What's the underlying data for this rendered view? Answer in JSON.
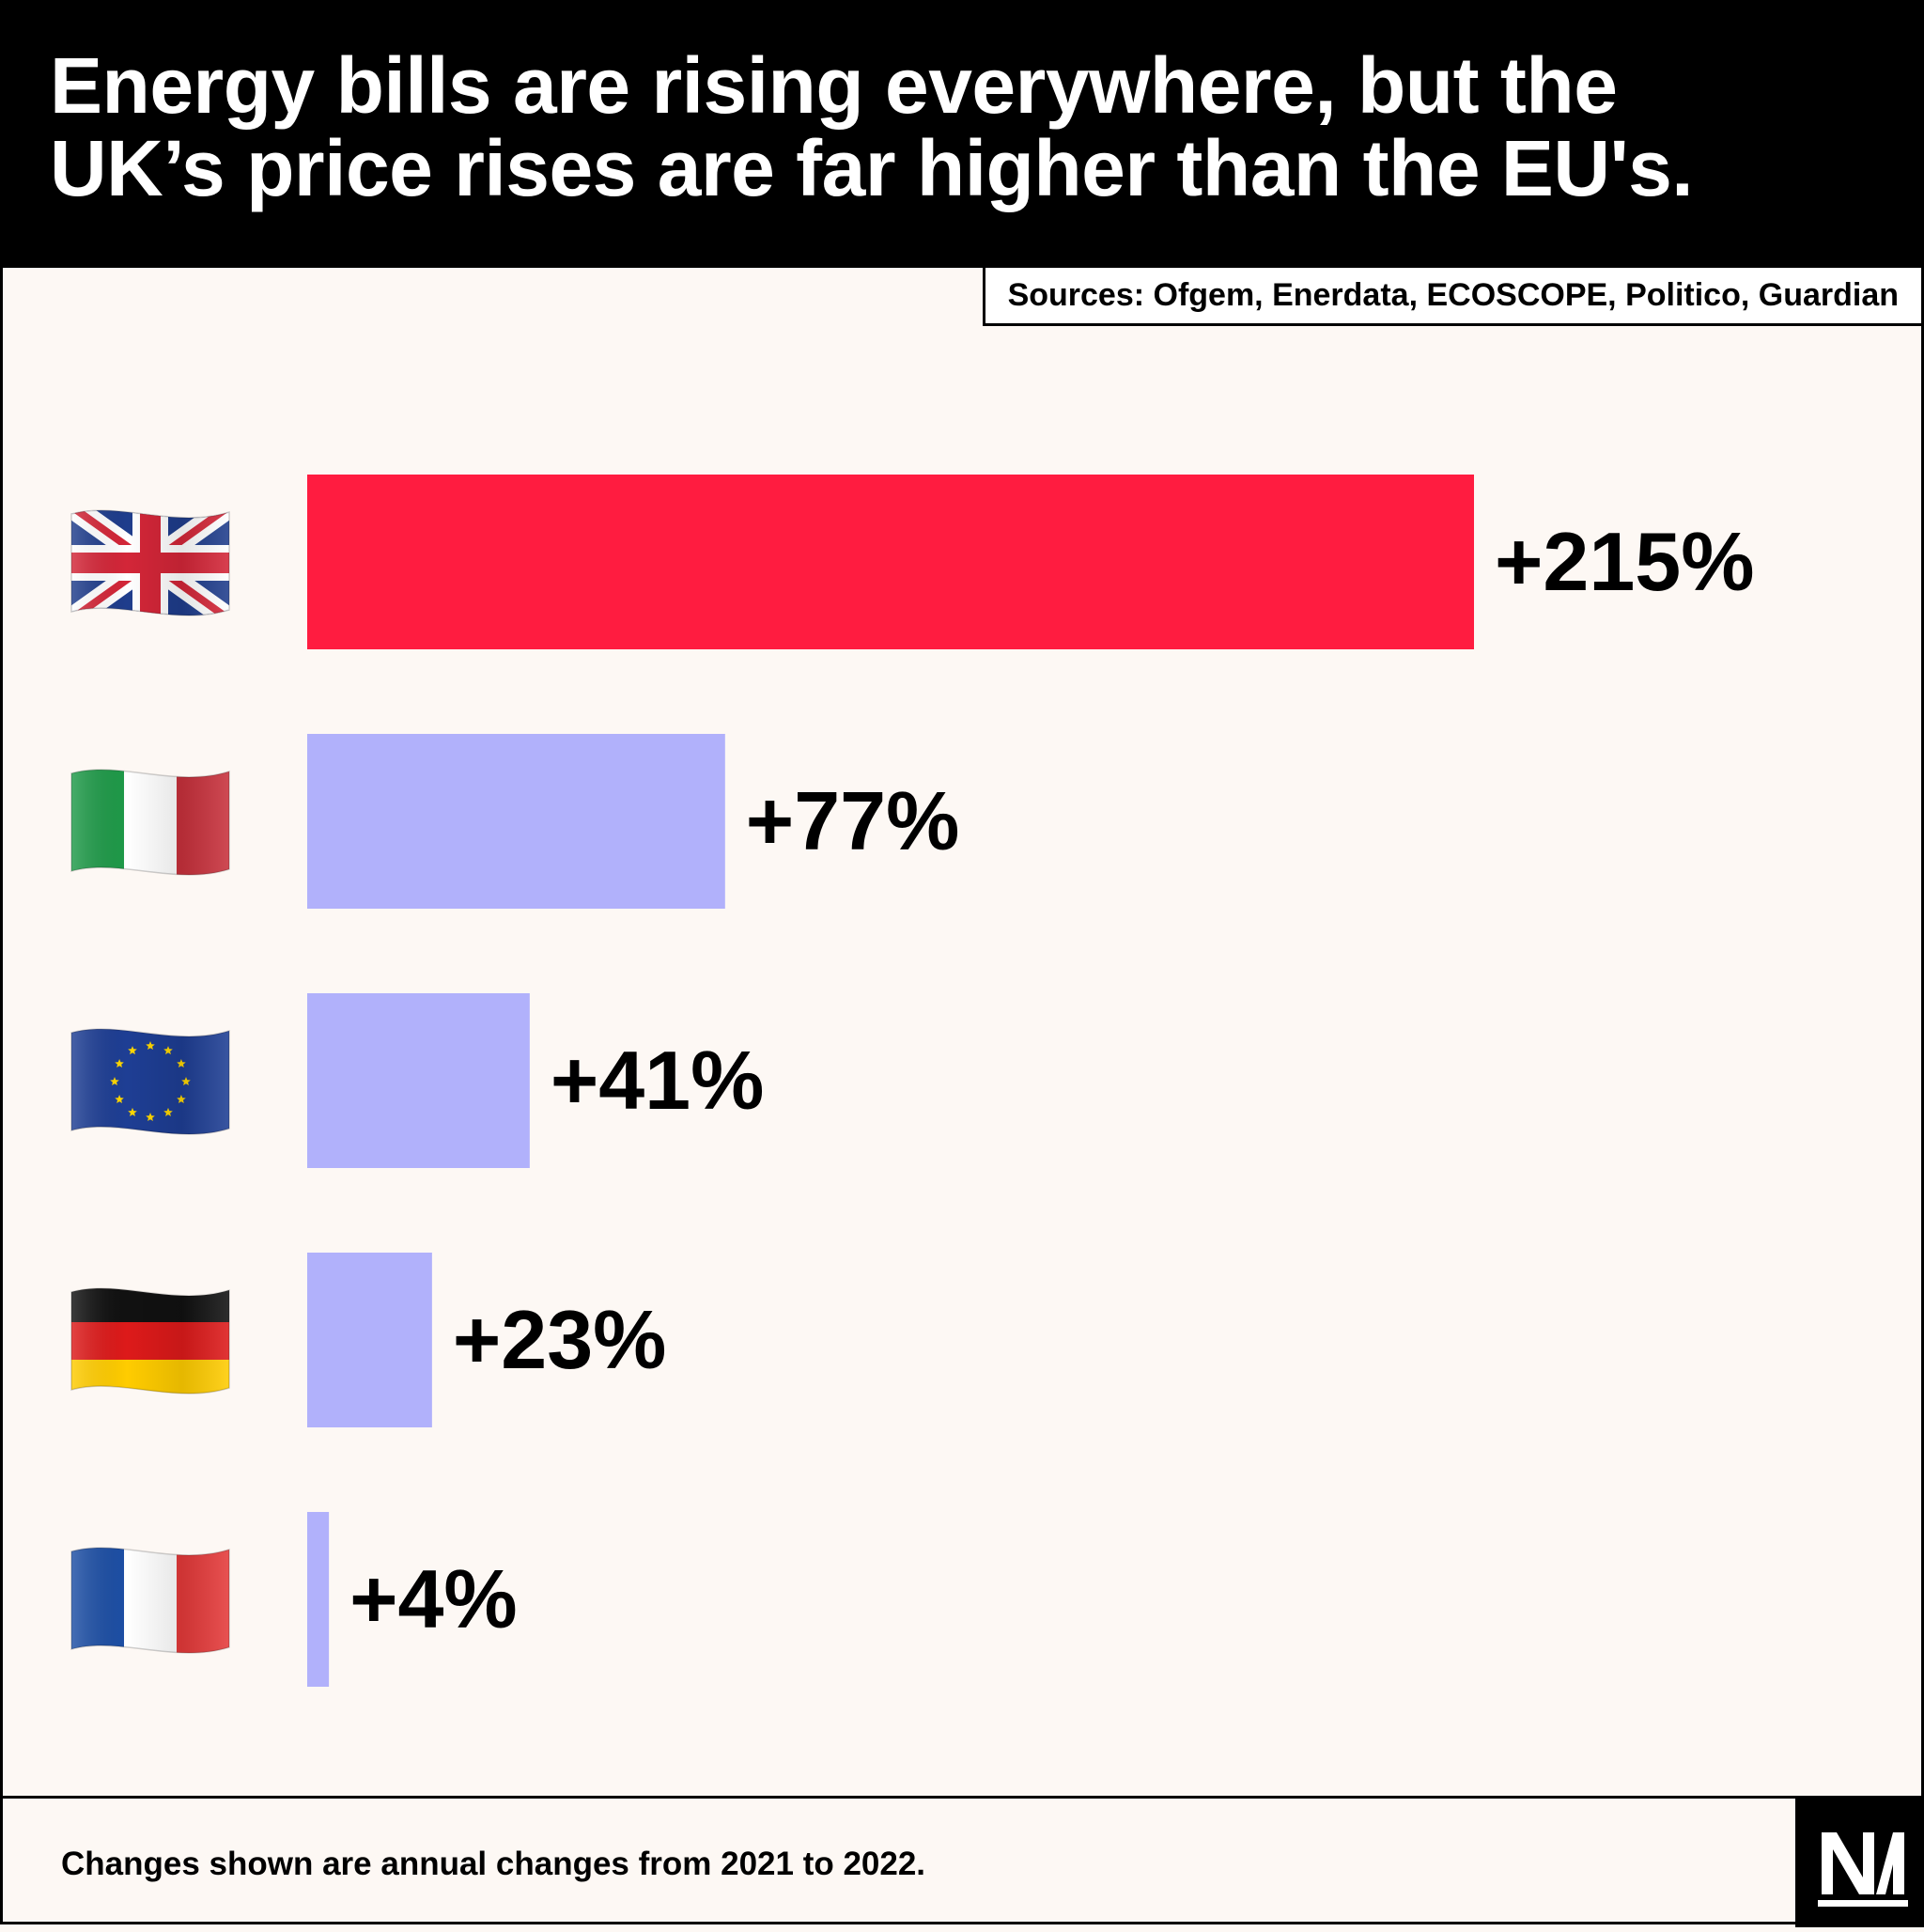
{
  "header": {
    "title_lines": [
      "Energy bills are rising everywhere, but the",
      "UK’s price rises are far higher than the EU's."
    ]
  },
  "sources": "Sources: Ofgem, Enerdata, ECOSCOPE, Politico, Guardian",
  "footnote": "Changes shown are annual changes from 2021 to 2022.",
  "chart_data": {
    "type": "bar",
    "orientation": "horizontal",
    "categories": [
      "UK",
      "Italy",
      "EU",
      "Germany",
      "France"
    ],
    "values": [
      215,
      77,
      41,
      23,
      4
    ],
    "labels": [
      "+215%",
      "+77%",
      "+41%",
      "+23%",
      "+4%"
    ],
    "unit": "%",
    "xlim": [
      0,
      215
    ],
    "grid": false,
    "legend": "none",
    "colors": {
      "highlight": "#ff1c40",
      "default": "#b1b1fb"
    },
    "highlight_index": 0,
    "category_icons": [
      "uk-flag-icon",
      "italy-flag-icon",
      "eu-flag-icon",
      "germany-flag-icon",
      "france-flag-icon"
    ]
  }
}
